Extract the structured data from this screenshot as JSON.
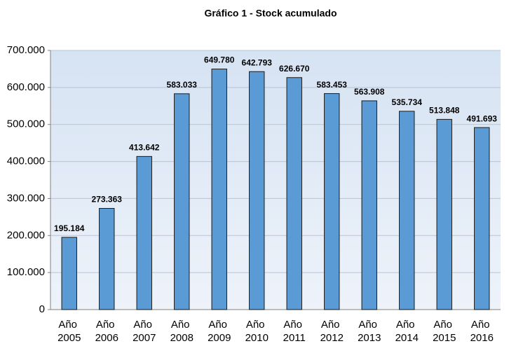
{
  "chart_data": {
    "type": "bar",
    "title": "Gráfico  1 - Stock acumulado",
    "categories": [
      "Año 2005",
      "Año 2006",
      "Año 2007",
      "Año 2008",
      "Año 2009",
      "Año 2010",
      "Año 2011",
      "Año 2012",
      "Año 2013",
      "Año 2014",
      "Año 2015",
      "Año 2016"
    ],
    "values": [
      195184,
      273363,
      413642,
      583033,
      649780,
      642793,
      626670,
      583453,
      563908,
      535734,
      513848,
      491693
    ],
    "value_labels": [
      "195.184",
      "273.363",
      "413.642",
      "583.033",
      "649.780",
      "642.793",
      "626.670",
      "583.453",
      "563.908",
      "535.734",
      "513.848",
      "491.693"
    ],
    "color": "#5b9bd5",
    "ylim": [
      0,
      700000
    ],
    "yticks": [
      0,
      {
        "value": 100000,
        "label": "100.000"
      },
      {
        "value": 200000,
        "label": "200.000"
      },
      {
        "value": 300000,
        "label": "300.000"
      },
      {
        "value": 400000,
        "label": "400.000"
      },
      {
        "value": 500000,
        "label": "500.000"
      },
      {
        "value": 600000,
        "label": "600.000"
      },
      {
        "value": 700000,
        "label": "700.000"
      }
    ],
    "grid": true
  }
}
